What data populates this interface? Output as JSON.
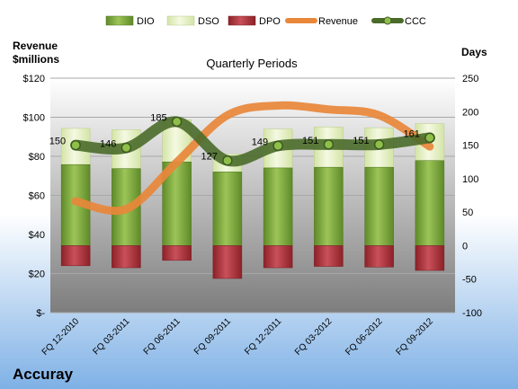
{
  "chart_data": {
    "type": "bar",
    "company": "Accuray",
    "title": "Quarterly Periods",
    "ylabel_left": "Revenue\n$millions",
    "ylabel_right": "Days",
    "categories": [
      "FQ 12-2010",
      "FQ 03-2011",
      "FQ 06-2011",
      "FQ 09-2011",
      "FQ 12-2011",
      "FQ 03-2012",
      "FQ 06-2012",
      "FQ 09-2012"
    ],
    "left_axis": {
      "min": 0,
      "max": 120,
      "step": 20,
      "tick_labels": [
        "$-",
        "$20",
        "$40",
        "$60",
        "$80",
        "$100",
        "$120"
      ]
    },
    "right_axis": {
      "min": -100,
      "max": 250,
      "step": 50,
      "tick_labels": [
        "-100",
        "-50",
        "0",
        "50",
        "100",
        "150",
        "200",
        "250"
      ]
    },
    "legend_position": "top",
    "series": [
      {
        "name": "DIO",
        "axis": "right",
        "type": "stacked-bar",
        "color": "#7aa33a",
        "values": [
          121,
          115,
          125,
          110,
          116,
          117,
          117,
          127
        ]
      },
      {
        "name": "DSO",
        "axis": "right",
        "type": "stacked-bar",
        "color": "#e6f0c4",
        "values": [
          54,
          58,
          63,
          27,
          58,
          60,
          59,
          55
        ]
      },
      {
        "name": "DPO",
        "axis": "right",
        "type": "negative-bar",
        "color": "#b2323c",
        "values": [
          -30,
          -33,
          -22,
          -49,
          -33,
          -31,
          -32,
          -37
        ]
      },
      {
        "name": "Revenue",
        "axis": "left",
        "type": "line",
        "color": "#e8873a",
        "values": [
          57,
          53,
          77,
          101,
          106,
          104,
          101,
          85
        ]
      },
      {
        "name": "CCC",
        "axis": "right",
        "type": "line-marker",
        "color": "#4a6b2a",
        "values": [
          150,
          146,
          185,
          127,
          149,
          151,
          151,
          161
        ],
        "data_labels": [
          "150",
          "146",
          "185",
          "127",
          "149",
          "151",
          "151",
          "161"
        ]
      }
    ]
  }
}
